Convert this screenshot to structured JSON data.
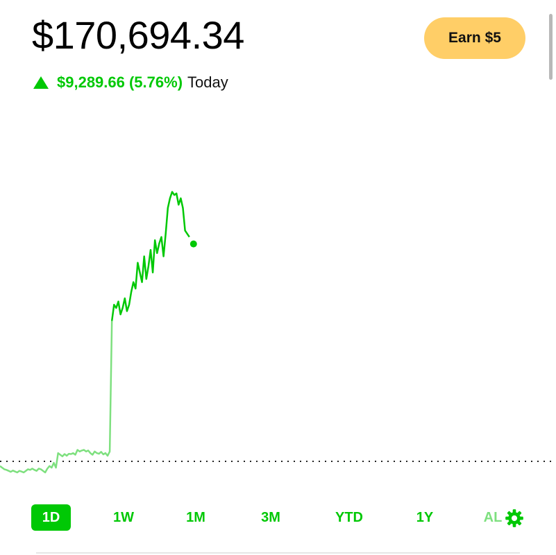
{
  "portfolio": {
    "balance": "$170,694.34",
    "change_amount": "$9,289.66 (5.76%)",
    "change_label": "Today",
    "change_direction_icon": "triangle-up-icon"
  },
  "header": {
    "earn_button_label": "Earn $5"
  },
  "colors": {
    "accent": "#00c805",
    "accent_faded": "#7ee07f",
    "earn_button": "#ffce67"
  },
  "range_tabs": [
    "1D",
    "1W",
    "1M",
    "3M",
    "YTD",
    "1Y",
    "AL"
  ],
  "selected_range": "1D",
  "settings_icon": "gear-icon",
  "chart_data": {
    "type": "line",
    "values": [
      161500,
      161450,
      161400,
      161380,
      161350,
      161320,
      161360,
      161330,
      161300,
      161350,
      161330,
      161300,
      161350,
      161400,
      161380,
      161420,
      161380,
      161350,
      161420,
      161400,
      161350,
      161300,
      161420,
      161500,
      161450,
      161600,
      161450,
      161900,
      161850,
      161800,
      161870,
      161820,
      161880,
      161870,
      161900,
      161850,
      162000,
      161950,
      161980,
      162000,
      161950,
      161980,
      161900,
      161850,
      161950,
      161900,
      161880,
      161940,
      161860,
      161900,
      161820,
      161950,
      166000,
      166500,
      166400,
      166600,
      166200,
      166400,
      166700,
      166300,
      166500,
      166900,
      167200,
      167000,
      167800,
      167500,
      167200,
      168000,
      167300,
      167700,
      168200,
      167500,
      168500,
      168100,
      168400,
      168600,
      168000,
      168700,
      169500,
      169800,
      170000,
      169900,
      169950,
      169600,
      169800,
      169500,
      168800,
      168700,
      168600
    ],
    "series_split_index": 52,
    "reference_line": "dotted",
    "marker": "end-point"
  }
}
